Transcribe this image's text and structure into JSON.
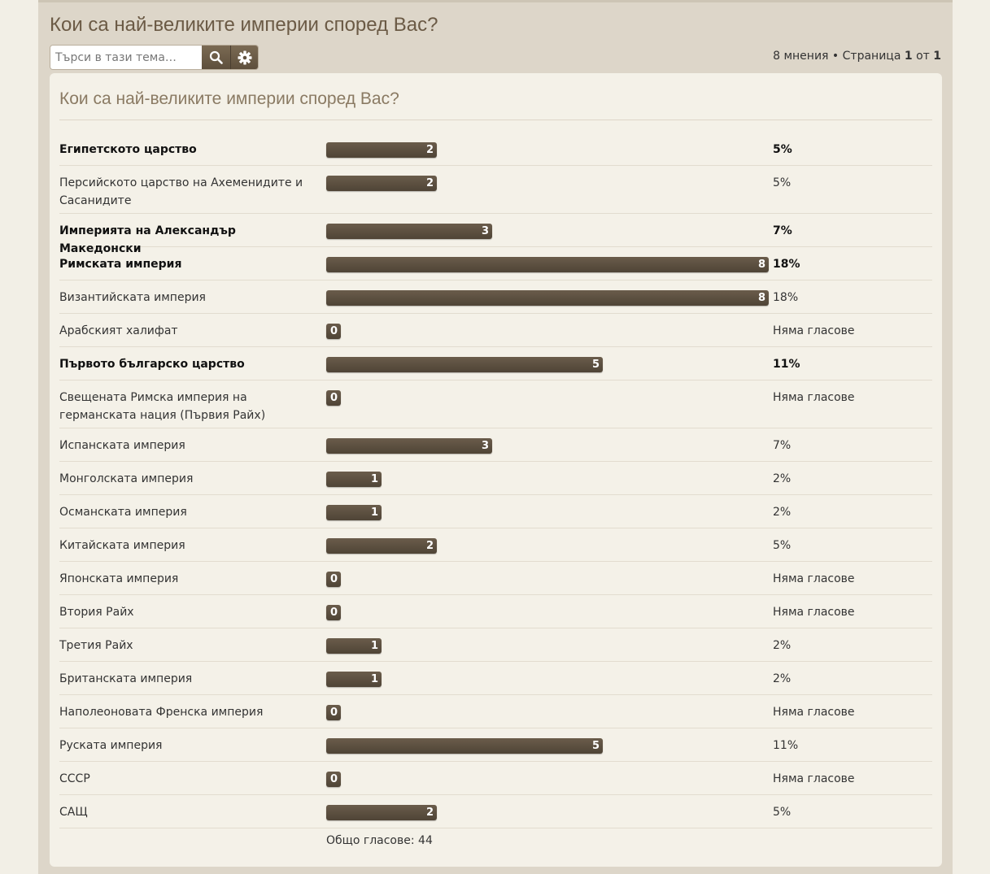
{
  "topic": {
    "title": "Кои са най-великите империи според Вас?",
    "search_placeholder": "Търси в тази тема…",
    "pagination": {
      "posts": "8 мнения",
      "bullet": "•",
      "page_word": "Страница",
      "current": "1",
      "of_word": "от",
      "total": "1"
    }
  },
  "poll": {
    "title": "Кои са най-великите империи според Вас?",
    "max_votes": 8,
    "options": [
      {
        "label": "Египетското царство",
        "votes": 2,
        "percent": "5%",
        "voted": true
      },
      {
        "label": "Персийското царство на Ахеменидите и Сасанидите",
        "votes": 2,
        "percent": "5%",
        "voted": false
      },
      {
        "label": "Империята на Александър Македонски",
        "votes": 3,
        "percent": "7%",
        "voted": true
      },
      {
        "label": "Римската империя",
        "votes": 8,
        "percent": "18%",
        "voted": true
      },
      {
        "label": "Византийската империя",
        "votes": 8,
        "percent": "18%",
        "voted": false
      },
      {
        "label": "Арабският халифат",
        "votes": 0,
        "percent": "Няма гласове",
        "voted": false
      },
      {
        "label": "Първото българско царство",
        "votes": 5,
        "percent": "11%",
        "voted": true
      },
      {
        "label": "Свещената Римска империя на германската нация (Първия Райх)",
        "votes": 0,
        "percent": "Няма гласове",
        "voted": false
      },
      {
        "label": "Испанската империя",
        "votes": 3,
        "percent": "7%",
        "voted": false
      },
      {
        "label": "Монголската империя",
        "votes": 1,
        "percent": "2%",
        "voted": false
      },
      {
        "label": "Османската империя",
        "votes": 1,
        "percent": "2%",
        "voted": false
      },
      {
        "label": "Китайската империя",
        "votes": 2,
        "percent": "5%",
        "voted": false
      },
      {
        "label": "Японската империя",
        "votes": 0,
        "percent": "Няма гласове",
        "voted": false
      },
      {
        "label": "Втория Райх",
        "votes": 0,
        "percent": "Няма гласове",
        "voted": false
      },
      {
        "label": "Третия Райх",
        "votes": 1,
        "percent": "2%",
        "voted": false
      },
      {
        "label": "Британската империя",
        "votes": 1,
        "percent": "2%",
        "voted": false
      },
      {
        "label": "Наполеоновата Френска империя",
        "votes": 0,
        "percent": "Няма гласове",
        "voted": false
      },
      {
        "label": "Руската империя",
        "votes": 5,
        "percent": "11%",
        "voted": false
      },
      {
        "label": "СССР",
        "votes": 0,
        "percent": "Няма гласове",
        "voted": false
      },
      {
        "label": "САЩ",
        "votes": 2,
        "percent": "5%",
        "voted": false
      }
    ],
    "total_label": "Общо гласове: 44"
  }
}
